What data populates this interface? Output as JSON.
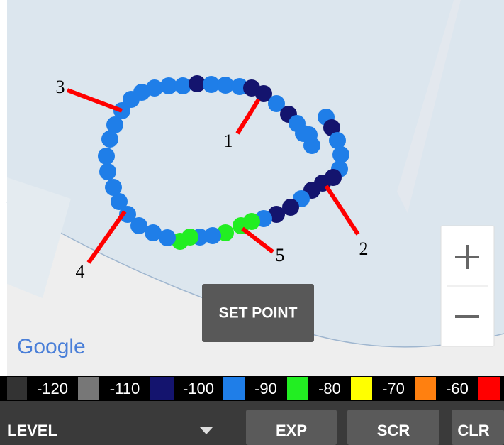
{
  "map": {
    "callouts": [
      "1",
      "2",
      "3",
      "4",
      "5"
    ],
    "attribution": "Google"
  },
  "button_set_point": "SET POINT",
  "legend": [
    {
      "label": "-120",
      "color": "#333333"
    },
    {
      "label": "-110",
      "color": "#777777"
    },
    {
      "label": "-100",
      "color": "#14146e"
    },
    {
      "label": "-90",
      "color": "#1f7ee8"
    },
    {
      "label": "-80",
      "color": "#22ee22"
    },
    {
      "label": "-70",
      "color": "#ffff00"
    },
    {
      "label": "-60",
      "color": "#ff8010"
    }
  ],
  "legend_end_color": "#ff0000",
  "toolbar": {
    "selector": "LEVEL",
    "buttons": [
      "EXP",
      "SCR",
      "CLR"
    ]
  }
}
